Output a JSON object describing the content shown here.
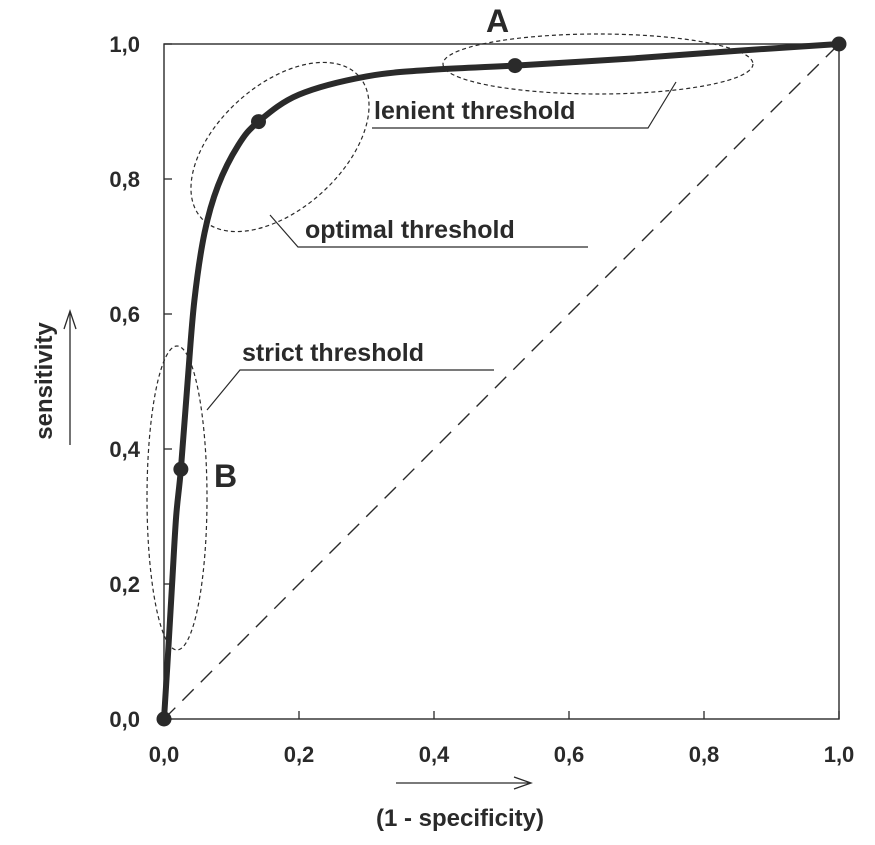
{
  "chart_data": {
    "type": "line",
    "xlabel": "(1 - specificity)",
    "ylabel": "sensitivity",
    "xlim": [
      0,
      1
    ],
    "ylim": [
      0,
      1
    ],
    "x_ticks": [
      "0,0",
      "0,2",
      "0,4",
      "0,6",
      "0,8",
      "1,0"
    ],
    "y_ticks": [
      "0,0",
      "0,2",
      "0,4",
      "0,6",
      "0,8",
      "1,0"
    ],
    "grid": false,
    "series": [
      {
        "points": [
          [
            0,
            0
          ],
          [
            0.005,
            0.08
          ],
          [
            0.012,
            0.2
          ],
          [
            0.018,
            0.3
          ],
          [
            0.025,
            0.37
          ],
          [
            0.035,
            0.5
          ],
          [
            0.045,
            0.62
          ],
          [
            0.06,
            0.72
          ],
          [
            0.08,
            0.79
          ],
          [
            0.11,
            0.85
          ],
          [
            0.14,
            0.885
          ],
          [
            0.2,
            0.925
          ],
          [
            0.3,
            0.952
          ],
          [
            0.4,
            0.962
          ],
          [
            0.52,
            0.968
          ],
          [
            0.7,
            0.979
          ],
          [
            0.85,
            0.99
          ],
          [
            1.0,
            1.0
          ]
        ]
      }
    ],
    "reference_line": [
      [
        0,
        0
      ],
      [
        1,
        1
      ]
    ],
    "markers": [
      {
        "x": 0,
        "y": 0
      },
      {
        "x": 0.025,
        "y": 0.37
      },
      {
        "x": 0.14,
        "y": 0.885
      },
      {
        "x": 0.52,
        "y": 0.968
      },
      {
        "x": 1.0,
        "y": 1.0
      }
    ],
    "point_labels": {
      "a": "A",
      "b": "B"
    },
    "annotations": {
      "lenient": "lenient threshold",
      "optimal": "optimal threshold",
      "strict": "strict threshold"
    }
  }
}
